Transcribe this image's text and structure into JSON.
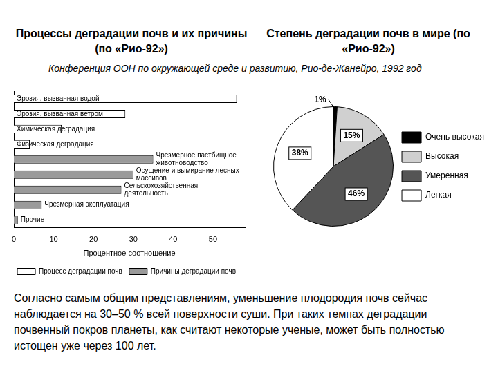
{
  "source_note": "Конференция ООН по окружающей среде и развитию, Рио-де-Жанейро, 1992 год",
  "text": "Согласно самым общим представлениям, уменьшение плодородия почв сейчас наблюдается на 30–50 % всей поверхности суши. При таких темпах деградации почвенный покров планеты, как считают некоторые ученые, может быть полностью истощен уже через 100 лет.",
  "chart_data": [
    {
      "type": "bar",
      "orientation": "horizontal",
      "title": "Процессы деградации почв и их причины (по «Рио-92»)",
      "categories": [
        "Эрозия, вызванная водой",
        "Эрозия, вызванная ветром",
        "Химическая деградация",
        "Физическая деградация",
        "Чрезмерное пастбищное животноводство",
        "Осущение и вымирание лесных массивов",
        "Сельскохозяйственная деятельность",
        "Чрезмерная эксплуатация",
        "Прочие"
      ],
      "series": [
        {
          "name": "Процесс деградации почв",
          "color": "#ffffff",
          "values": [
            56,
            28,
            12,
            4,
            null,
            null,
            null,
            null,
            null
          ]
        },
        {
          "name": "Причины деградации почв",
          "color": "#9a9a9a",
          "values": [
            null,
            null,
            null,
            null,
            35,
            30,
            27,
            7,
            1
          ]
        }
      ],
      "xlabel": "Процентное соотношение",
      "xlim": [
        0,
        58
      ],
      "xticks": [
        0,
        10,
        20,
        30,
        40,
        50
      ],
      "grid": false,
      "legend": "bottom",
      "tick_labels": "x"
    },
    {
      "type": "pie",
      "title": "Степень деградации почв в мире (по «Рио-92»)",
      "categories": [
        "Очень высокая",
        "Высокая",
        "Умеренная",
        "Легкая"
      ],
      "values": [
        1,
        15,
        46,
        38
      ],
      "value_labels": [
        "1%",
        "15%",
        "46%",
        "38%"
      ],
      "colors": [
        "#000000",
        "#d0d0d0",
        "#555555",
        "#ffffff"
      ],
      "data_labels": true,
      "legend": "right"
    }
  ]
}
